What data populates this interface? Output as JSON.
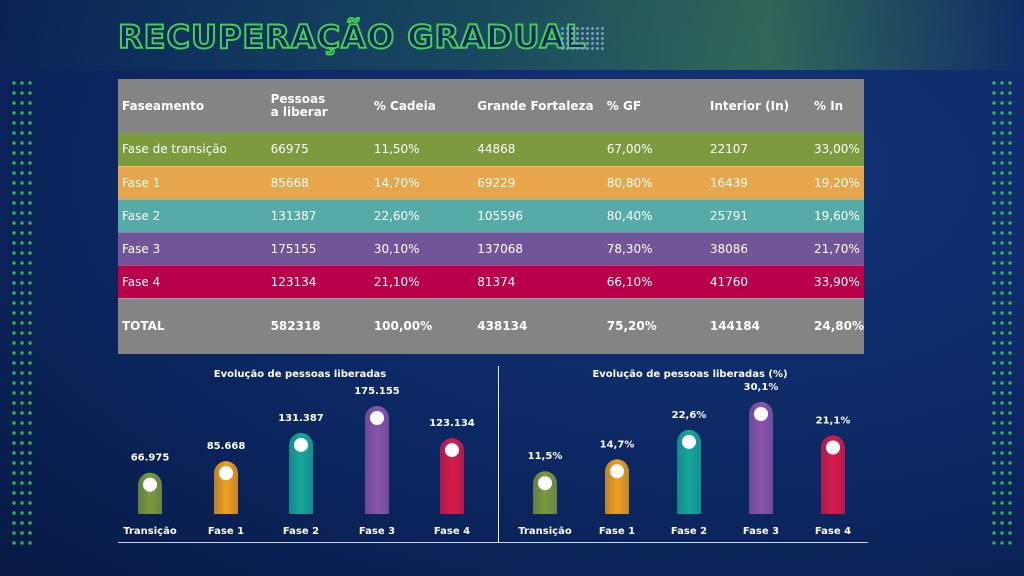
{
  "page": {
    "title": "RECUPERAÇÃO GRADUAL"
  },
  "table": {
    "headers": [
      "Faseamento",
      "Pessoas a liberar",
      "% Cadeia",
      "Grande Fortaleza",
      "% GF",
      "Interior (In)",
      "% In"
    ],
    "rows": [
      [
        "Fase de transição",
        "66975",
        "11,50%",
        "44868",
        "67,00%",
        "22107",
        "33,00%"
      ],
      [
        "Fase 1",
        "85668",
        "14,70%",
        "69229",
        "80,80%",
        "16439",
        "19,20%"
      ],
      [
        "Fase 2",
        "131387",
        "22,60%",
        "105596",
        "80,40%",
        "25791",
        "19,60%"
      ],
      [
        "Fase 3",
        "175155",
        "30,10%",
        "137068",
        "78,30%",
        "38086",
        "21,70%"
      ],
      [
        "Fase 4",
        "123134",
        "21,10%",
        "81374",
        "66,10%",
        "41760",
        "33,90%"
      ]
    ],
    "total": [
      "TOTAL",
      "582318",
      "100,00%",
      "438134",
      "75,20%",
      "144184",
      "24,80%"
    ],
    "row_colors": [
      "#7d9a3e",
      "#e7a64b",
      "#55aba5",
      "#70559b",
      "#b8014a"
    ]
  },
  "chart_data": [
    {
      "type": "bar",
      "title": "Evolução de pessoas liberadas",
      "categories": [
        "Transição",
        "Fase 1",
        "Fase 2",
        "Fase 3",
        "Fase 4"
      ],
      "values": [
        66975,
        85668,
        131387,
        175155,
        123134
      ],
      "data_labels": [
        "66.975",
        "85.668",
        "131.387",
        "175.155",
        "123.134"
      ],
      "colors": [
        "#7d9a3e",
        "#f0a020",
        "#15a89a",
        "#8a55ab",
        "#d91a4a"
      ],
      "ylim": [
        0,
        175155
      ],
      "grid": false
    },
    {
      "type": "bar",
      "title": "Evolução de pessoas liberadas (%)",
      "categories": [
        "Transição",
        "Fase 1",
        "Fase 2",
        "Fase 3",
        "Fase 4"
      ],
      "values": [
        11.5,
        14.7,
        22.6,
        30.1,
        21.1
      ],
      "data_labels": [
        "11,5%",
        "14,7%",
        "22,6%",
        "30,1%",
        "21,1%"
      ],
      "colors": [
        "#7d9a3e",
        "#f0a020",
        "#15a89a",
        "#8a55ab",
        "#d91a4a"
      ],
      "ylim": [
        0,
        30.1
      ],
      "grid": false
    }
  ]
}
